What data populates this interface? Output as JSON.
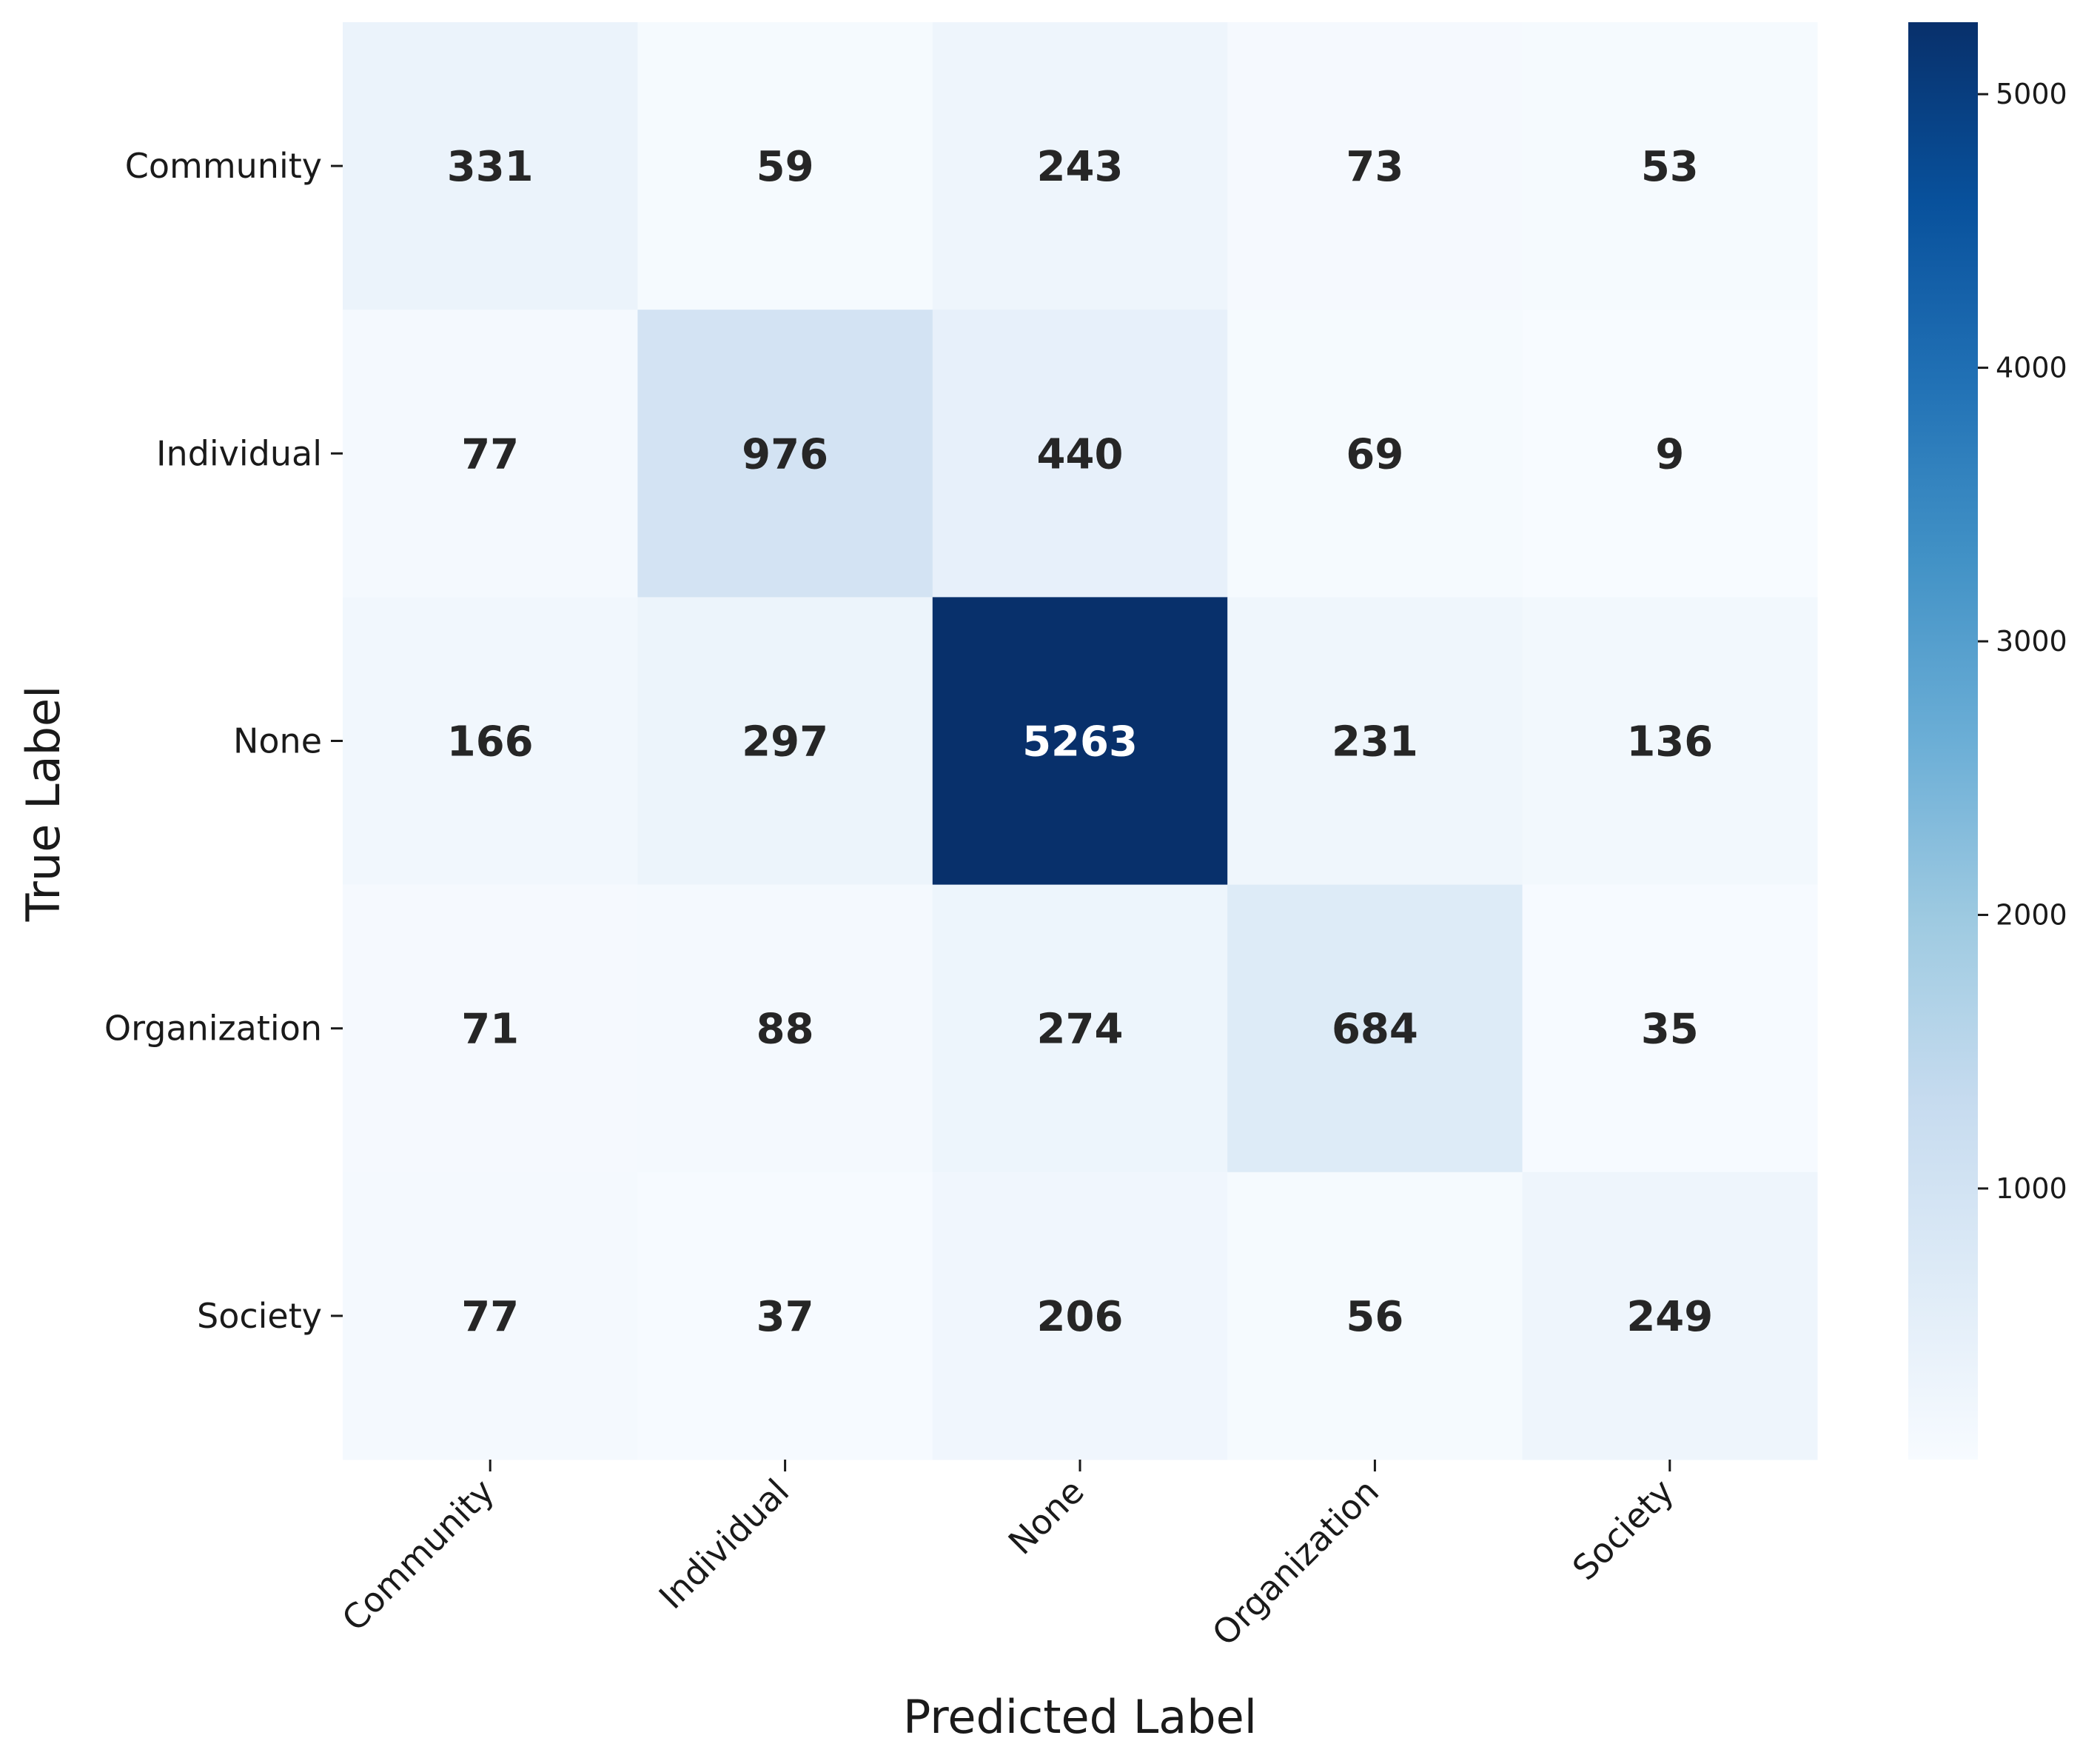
{
  "chart_data": {
    "type": "heatmap",
    "title": "",
    "xlabel": "Predicted Label",
    "ylabel": "True Label",
    "x_categories": [
      "Community",
      "Individual",
      "None",
      "Organization",
      "Society"
    ],
    "y_categories": [
      "Community",
      "Individual",
      "None",
      "Organization",
      "Society"
    ],
    "values": [
      [
        331,
        59,
        243,
        73,
        53
      ],
      [
        77,
        976,
        440,
        69,
        9
      ],
      [
        166,
        297,
        5263,
        231,
        136
      ],
      [
        71,
        88,
        274,
        684,
        35
      ],
      [
        77,
        37,
        206,
        56,
        249
      ]
    ],
    "colormap": "Blues",
    "colorbar": {
      "min": 9,
      "max": 5263,
      "ticks": [
        1000,
        2000,
        3000,
        4000,
        5000
      ]
    },
    "grid": false
  }
}
